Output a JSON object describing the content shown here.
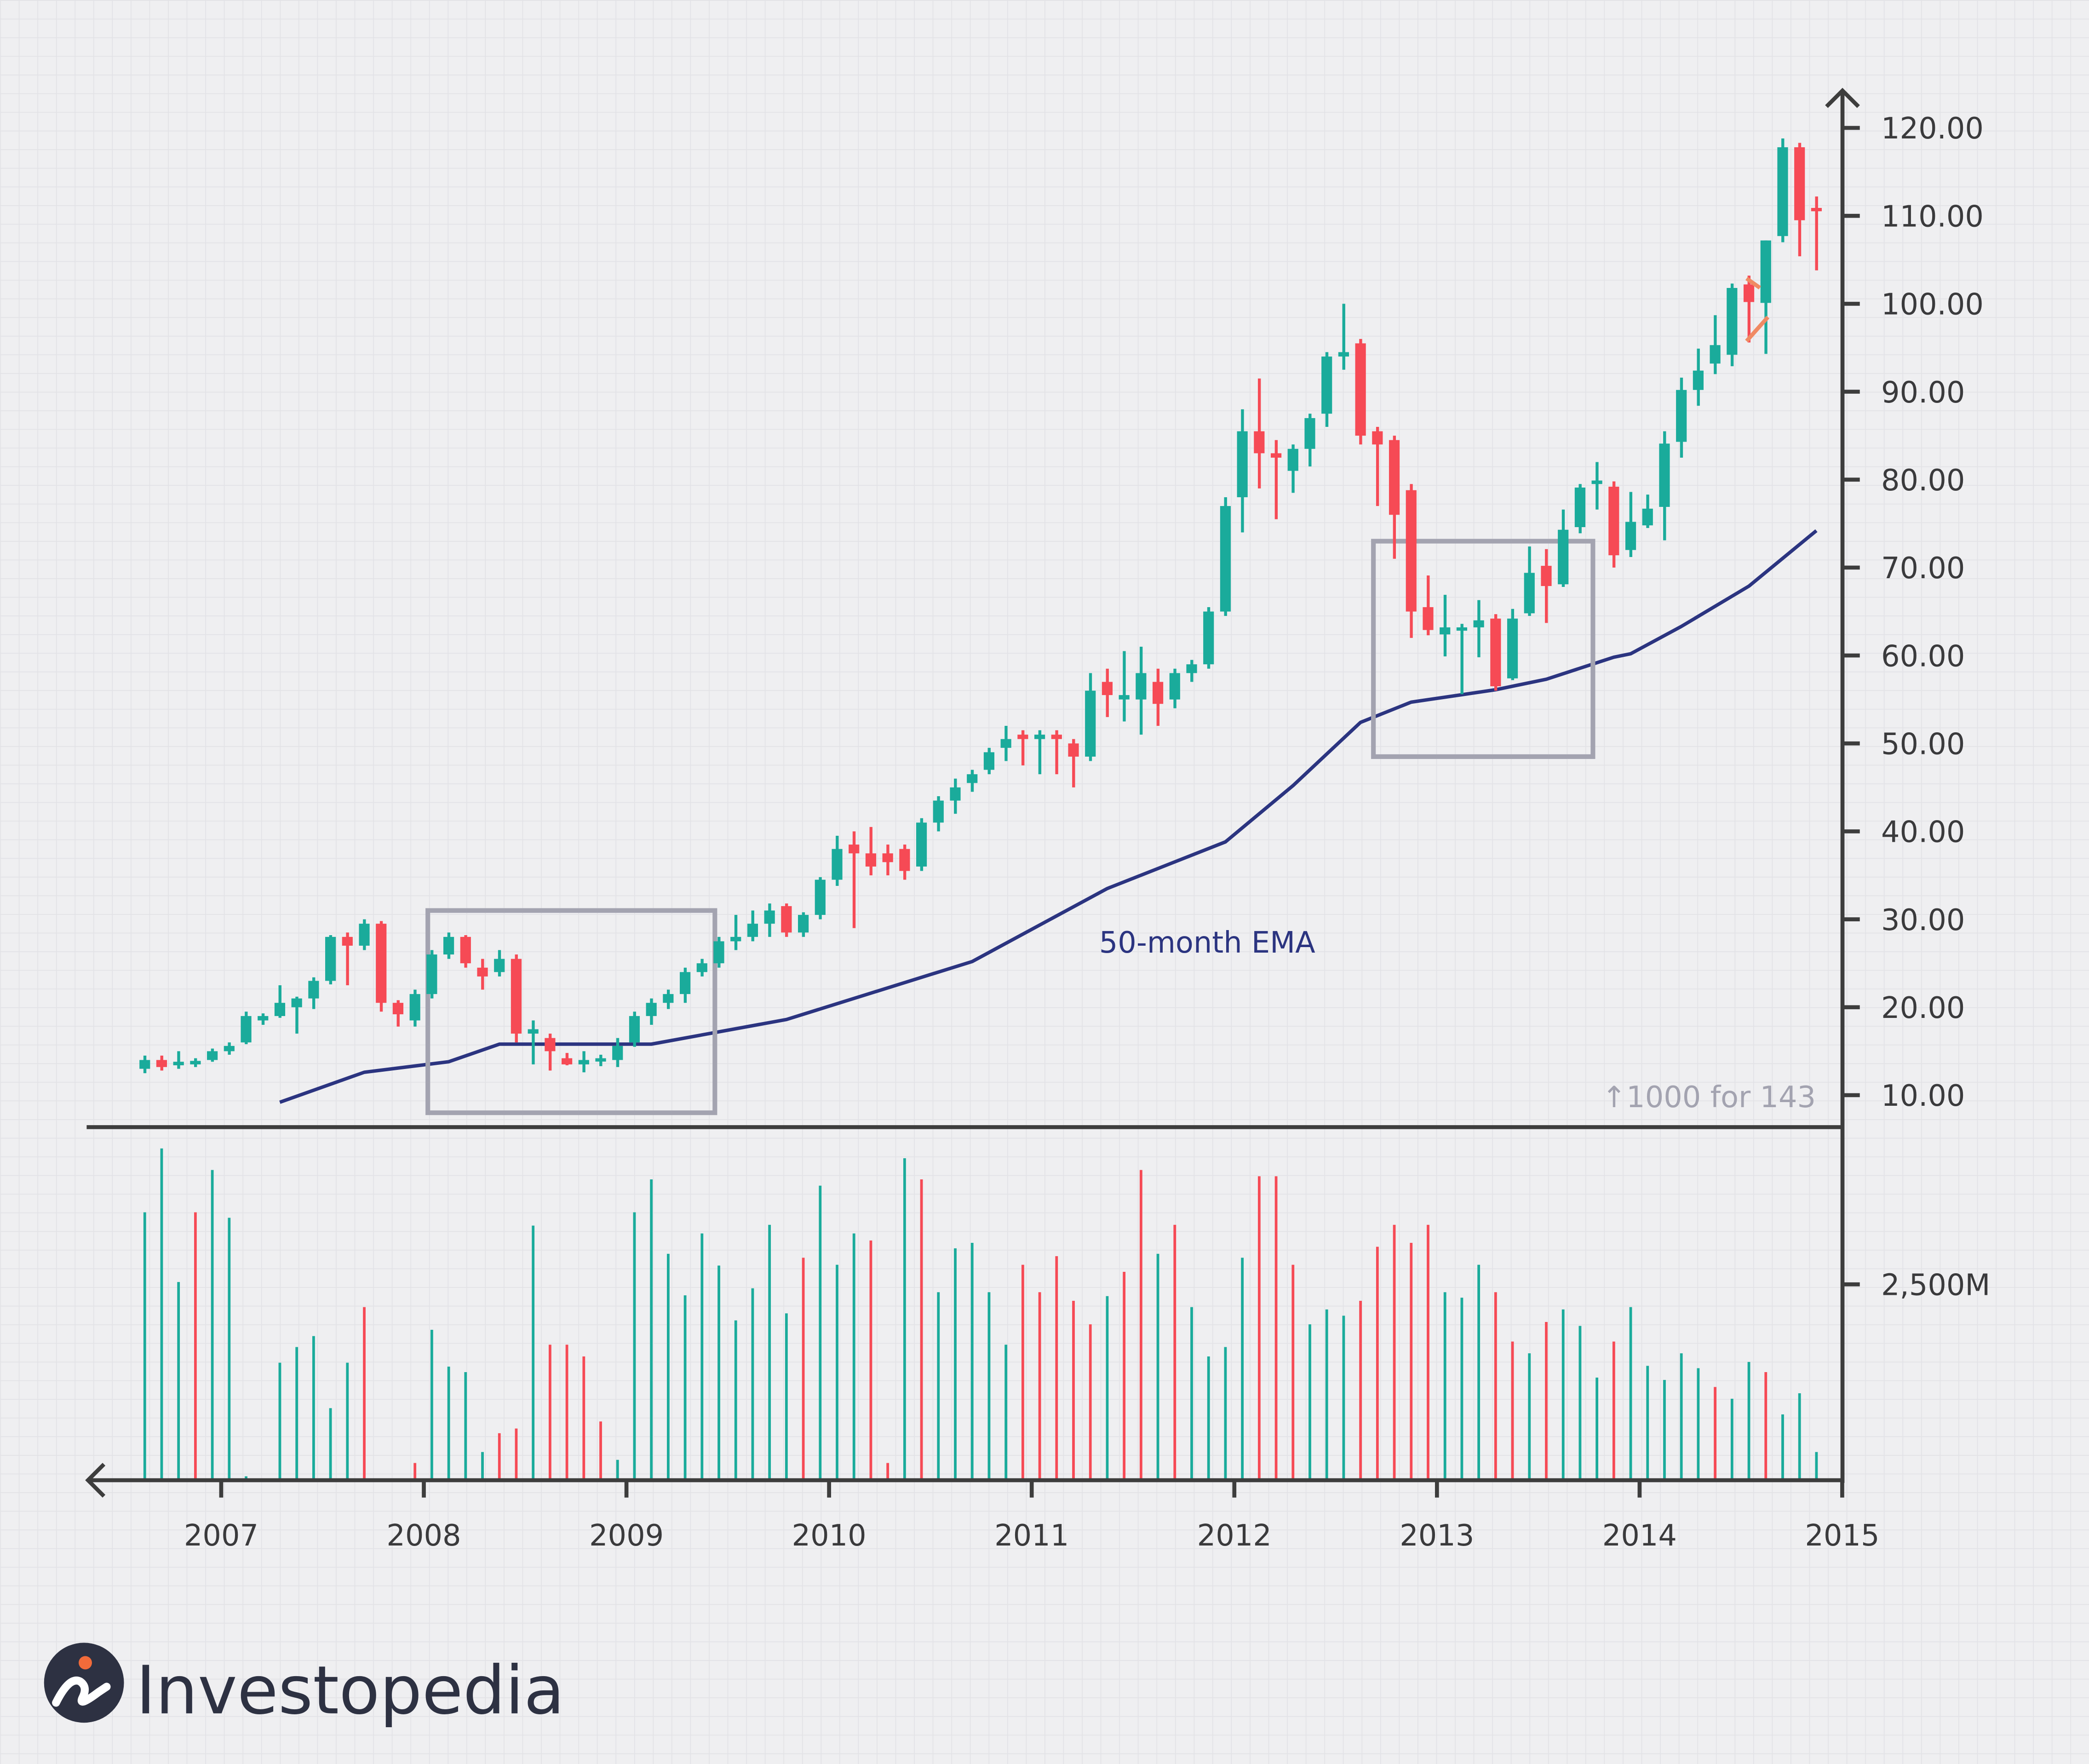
{
  "chart_data": {
    "type": "candlestick",
    "colors": {
      "up": "#1aab9b",
      "down": "#f64a55",
      "ema": "#2b3480",
      "box": "#a3a3b0",
      "axis": "#3d3d3d",
      "pennant": "#f08a63",
      "background": "#efeff1"
    },
    "grid": true,
    "start_month": "2006-08",
    "ohlc_fields": [
      "open",
      "high",
      "low",
      "close"
    ],
    "candles": [
      [
        13,
        14.5,
        12.5,
        14
      ],
      [
        14,
        14.5,
        12.8,
        13.2
      ],
      [
        13.4,
        15,
        13,
        13.8
      ],
      [
        13.5,
        14.2,
        13.2,
        13.9
      ],
      [
        14,
        15.3,
        13.8,
        15
      ],
      [
        15,
        16,
        14.6,
        15.6
      ],
      [
        16,
        19.5,
        15.8,
        19
      ],
      [
        18.5,
        19.3,
        18,
        19
      ],
      [
        19,
        22.5,
        18.8,
        20.5
      ],
      [
        20,
        21.2,
        17,
        21
      ],
      [
        21,
        23.4,
        19.8,
        23
      ],
      [
        23,
        28.2,
        22.6,
        28
      ],
      [
        28,
        28.5,
        22.5,
        27
      ],
      [
        27,
        30,
        26.5,
        29.5
      ],
      [
        29.5,
        29.8,
        19.5,
        20.5
      ],
      [
        20.5,
        20.8,
        17.8,
        19.2
      ],
      [
        18.5,
        22,
        17.8,
        21.5
      ],
      [
        21.5,
        26.5,
        21,
        26
      ],
      [
        26,
        28.5,
        25.5,
        28
      ],
      [
        28,
        28.2,
        24.5,
        25
      ],
      [
        24.5,
        25.5,
        22,
        23.5
      ],
      [
        24,
        26.5,
        23.5,
        25.5
      ],
      [
        25.5,
        26,
        16,
        17
      ],
      [
        17,
        18.5,
        13.5,
        17.5
      ],
      [
        16.5,
        17,
        12.8,
        15
      ],
      [
        14.2,
        14.8,
        13.4,
        13.5
      ],
      [
        13.5,
        15,
        12.6,
        14
      ],
      [
        14,
        14.6,
        13.3,
        14.2
      ],
      [
        14,
        16.5,
        13.2,
        15.6
      ],
      [
        16,
        19.5,
        15.5,
        19
      ],
      [
        19,
        21,
        18,
        20.5
      ],
      [
        20.5,
        22,
        19.8,
        21.5
      ],
      [
        21.5,
        24.5,
        20.5,
        24
      ],
      [
        24,
        25.5,
        23.5,
        25
      ],
      [
        25,
        28,
        24.5,
        27.5
      ],
      [
        27.5,
        30.5,
        26.5,
        28
      ],
      [
        28,
        31,
        27.5,
        29.5
      ],
      [
        29.5,
        31.8,
        28,
        31
      ],
      [
        31.5,
        31.8,
        28,
        28.5
      ],
      [
        28.5,
        30.8,
        28,
        30.5
      ],
      [
        30.5,
        34.8,
        30,
        34.5
      ],
      [
        34.5,
        39.5,
        33.8,
        38
      ],
      [
        38.5,
        40,
        29,
        37.5
      ],
      [
        37.5,
        40.5,
        35,
        36
      ],
      [
        37.5,
        38.5,
        35,
        36.5
      ],
      [
        38,
        38.5,
        34.5,
        35.5
      ],
      [
        36,
        41.5,
        35.5,
        41
      ],
      [
        41,
        44,
        40,
        43.5
      ],
      [
        43.5,
        46,
        42,
        45
      ],
      [
        45.5,
        47,
        44.5,
        46.5
      ],
      [
        47,
        49.5,
        46.5,
        49
      ],
      [
        49.5,
        52,
        48,
        50.5
      ],
      [
        51,
        51.5,
        47.5,
        50.5
      ],
      [
        50.5,
        51.5,
        46.5,
        51
      ],
      [
        51,
        51.5,
        46.5,
        50.5
      ],
      [
        50,
        50.5,
        45,
        48.5
      ],
      [
        48.5,
        58,
        48,
        56
      ],
      [
        57,
        58.5,
        53,
        55.5
      ],
      [
        55,
        60.5,
        52.5,
        55.5
      ],
      [
        55,
        61,
        51,
        58
      ],
      [
        57,
        58.5,
        52,
        54.5
      ],
      [
        55,
        58.5,
        54,
        58
      ],
      [
        58,
        59.5,
        57,
        59
      ],
      [
        59,
        65.5,
        58.5,
        65
      ],
      [
        65,
        78,
        64.5,
        77
      ],
      [
        78,
        88,
        74,
        85.5
      ],
      [
        85.5,
        91.5,
        79,
        83
      ],
      [
        83,
        84.5,
        75.5,
        82.5
      ],
      [
        81,
        84,
        78.5,
        83.5
      ],
      [
        83.5,
        87.5,
        81.5,
        87
      ],
      [
        87.5,
        94.5,
        86,
        94
      ],
      [
        94,
        100,
        92.5,
        94.5
      ],
      [
        95.5,
        96,
        84,
        85
      ],
      [
        85.5,
        86,
        77,
        84
      ],
      [
        84.5,
        85,
        71,
        76
      ],
      [
        78.8,
        79.5,
        62,
        65
      ],
      [
        65.5,
        69.1,
        62.3,
        62.9
      ],
      [
        62.4,
        66.9,
        59.9,
        63.2
      ],
      [
        63.1,
        63.6,
        55.6,
        63.2
      ],
      [
        63.2,
        66.3,
        59.8,
        64
      ],
      [
        64.2,
        64.7,
        56,
        56.5
      ],
      [
        57.4,
        65.3,
        57.2,
        64.2
      ],
      [
        64.8,
        72.4,
        64.5,
        69.4
      ],
      [
        70.2,
        72.1,
        63.7,
        67.9
      ],
      [
        68.1,
        76.6,
        67.8,
        74.3
      ],
      [
        74.6,
        79.5,
        73.9,
        79.1
      ],
      [
        79.5,
        82,
        76.6,
        79.9
      ],
      [
        79.2,
        79.8,
        70,
        71.4
      ],
      [
        72,
        78.6,
        71.2,
        75.2
      ],
      [
        74.8,
        78.3,
        74.5,
        76.7
      ],
      [
        76.9,
        85.5,
        73.1,
        84.1
      ],
      [
        84.3,
        91.6,
        82.5,
        90.2
      ],
      [
        90.2,
        94.9,
        88.4,
        92.4
      ],
      [
        93.2,
        98.7,
        92,
        95.3
      ],
      [
        94.2,
        102.3,
        92.9,
        101.8
      ],
      [
        102.2,
        103.2,
        95.6,
        100.2
      ],
      [
        100.1,
        107.2,
        94.3,
        107.2
      ],
      [
        107.7,
        118.8,
        107,
        117.8
      ],
      [
        117.8,
        118.3,
        105.4,
        109.5
      ],
      [
        110.9,
        112.2,
        103.8,
        110.7
      ]
    ],
    "volume_unit": "M",
    "volume": [
      3420,
      4235,
      2530,
      3420,
      3960,
      3350,
      50,
      0,
      1500,
      1700,
      1840,
      920,
      1500,
      2210,
      0,
      0,
      220,
      1920,
      1450,
      1380,
      360,
      600,
      660,
      3250,
      1730,
      1730,
      1580,
      750,
      260,
      3420,
      3840,
      2890,
      2360,
      3150,
      2740,
      2040,
      2450,
      3260,
      2130,
      2840,
      3760,
      2750,
      3150,
      3060,
      220,
      4110,
      3840,
      2400,
      2960,
      3030,
      2400,
      1730,
      2750,
      2400,
      2860,
      2290,
      1990,
      2350,
      2660,
      3960,
      2890,
      3260,
      2210,
      1580,
      1700,
      2840,
      3880,
      3880,
      2750,
      1990,
      2180,
      2100,
      2290,
      2980,
      3260,
      3030,
      3260,
      2400,
      2330,
      2750,
      2400,
      1770,
      1620,
      2020,
      2180,
      1970,
      1310,
      1770,
      2210,
      1460,
      1280,
      1620,
      1430,
      1190,
      1040,
      1510,
      1380,
      840,
      1110,
      360
    ],
    "volume_direction": "gggrgggggggggrrrrggggrrgrrrrgggggggggggrgggrrgrgggggrrrrrgrrgrggggrrrgggrrrrrgggrrgrgggrgggggrggrg",
    "ema": {
      "label": "50-month EMA",
      "points": [
        [
          "2007-04",
          9.2
        ],
        [
          "2007-09",
          12.6
        ],
        [
          "2008-02",
          13.8
        ],
        [
          "2008-05",
          15.8
        ],
        [
          "2009-02",
          15.8
        ],
        [
          "2009-10",
          18.6
        ],
        [
          "2010-09",
          25.2
        ],
        [
          "2011-05",
          33.5
        ],
        [
          "2011-12",
          38.8
        ],
        [
          "2012-04",
          45.2
        ],
        [
          "2012-08",
          52.4
        ],
        [
          "2012-11",
          54.7
        ],
        [
          "2013-04",
          56.1
        ],
        [
          "2013-07",
          57.3
        ],
        [
          "2013-11",
          59.8
        ],
        [
          "2013-12",
          60.2
        ],
        [
          "2014-03",
          63.3
        ],
        [
          "2014-07",
          67.9
        ],
        [
          "2014-11",
          74.2
        ]
      ]
    },
    "boxes": [
      {
        "from": "2008-01",
        "to": "2009-06",
        "low": 8,
        "high": 31
      },
      {
        "from": "2012-09",
        "to": "2013-10",
        "low": 48.5,
        "high": 73
      }
    ],
    "y_ticks": [
      "120.00",
      "110.00",
      "100.00",
      "90.00",
      "80.00",
      "70.00",
      "60.00",
      "50.00",
      "40.00",
      "30.00",
      "20.00",
      "10.00"
    ],
    "y_tick_values": [
      120,
      110,
      100,
      90,
      80,
      70,
      60,
      50,
      40,
      30,
      20,
      10
    ],
    "ylim": [
      10,
      120
    ],
    "x_ticks": [
      "2007",
      "2008",
      "2009",
      "2010",
      "2011",
      "2012",
      "2013",
      "2014",
      "2015"
    ],
    "volume_tick": {
      "label": "2,500M",
      "value": 2500
    },
    "annotation": "↑1000 for 143"
  },
  "logo": {
    "text": "Investopedia"
  }
}
